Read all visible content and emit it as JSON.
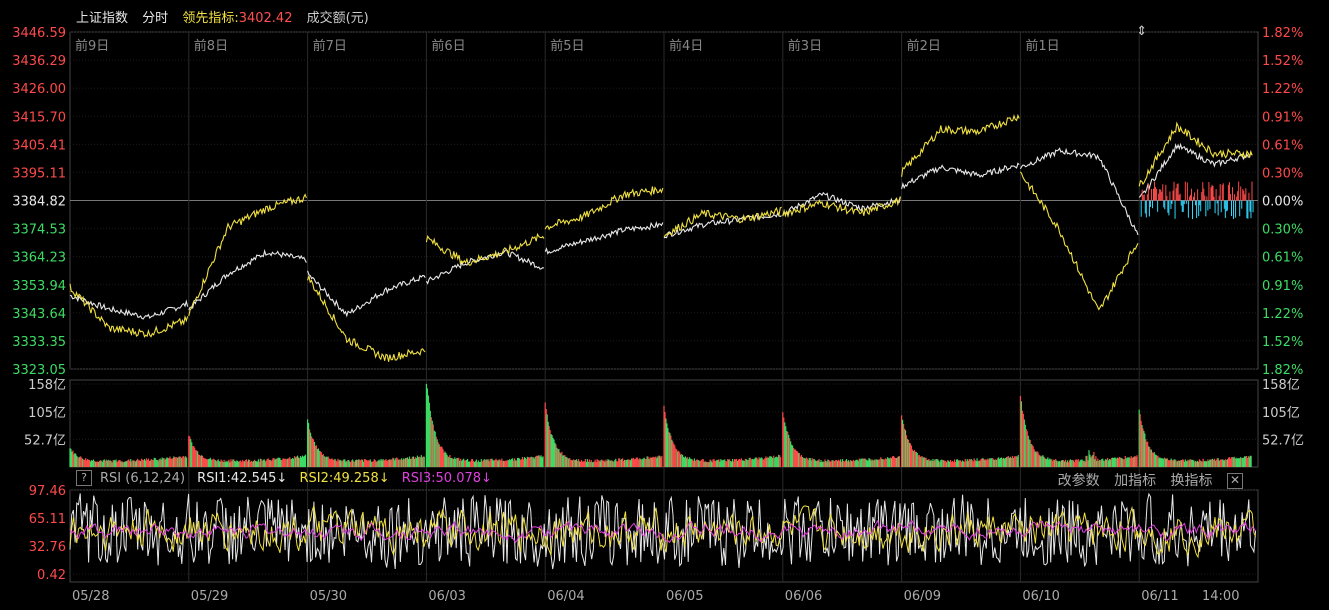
{
  "header": {
    "index_name": "上证指数",
    "mode": "分时",
    "leading_label": "领先指标:",
    "leading_value": "3402.42",
    "volume_label": "成交额(元)"
  },
  "colors": {
    "up": "#ff4a4a",
    "down": "#3ddc64",
    "white": "#e8e8e8",
    "yellow": "#f0e040",
    "magenta": "#e040e0",
    "cyan": "#30d8ff",
    "grid": "#3a0000"
  },
  "rsi_header": {
    "help": "?",
    "title": "RSI (6,12,24)",
    "rsi1": "RSI1:42.545↓",
    "rsi2": "RSI2:49.258↓",
    "rsi3": "RSI3:50.078↓"
  },
  "tools": {
    "change_params": "改参数",
    "add_indicator": "加指标",
    "switch_indicator": "换指标",
    "close": "✕"
  },
  "chart_data": {
    "type": "line",
    "price_axis": {
      "ticks": [
        "3446.59",
        "3436.29",
        "3426.00",
        "3415.70",
        "3405.41",
        "3395.11",
        "3384.82",
        "3374.53",
        "3364.23",
        "3353.94",
        "3343.64",
        "3333.35",
        "3323.05"
      ],
      "range": [
        3323.05,
        3446.59
      ],
      "base": 3384.82
    },
    "pct_axis": [
      "1.82%",
      "1.52%",
      "1.22%",
      "0.91%",
      "0.61%",
      "0.30%",
      "0.00%",
      "0.30%",
      "0.61%",
      "0.91%",
      "1.22%",
      "1.52%",
      "1.82%"
    ],
    "day_labels_top": [
      "前9日",
      "前8日",
      "前7日",
      "前6日",
      "前5日",
      "前4日",
      "前3日",
      "前2日",
      "前1日"
    ],
    "dates_bottom": [
      "05/28",
      "05/29",
      "05/30",
      "06/03",
      "06/04",
      "06/05",
      "06/06",
      "06/09",
      "06/10",
      "06/11",
      "14:00"
    ],
    "series": [
      {
        "color": "white",
        "points": [
          [
            3350,
            3345,
            3342,
            3347
          ],
          [
            3345,
            3358,
            3366,
            3363
          ],
          [
            3358,
            3343,
            3352,
            3357
          ],
          [
            3355,
            3362,
            3366,
            3360
          ],
          [
            3366,
            3370,
            3374,
            3376
          ],
          [
            3372,
            3376,
            3378,
            3380
          ],
          [
            3380,
            3387,
            3382,
            3385
          ],
          [
            3390,
            3397,
            3394,
            3398
          ],
          [
            3397,
            3403,
            3401,
            3372
          ],
          [
            3385,
            3405,
            3398,
            3402
          ]
        ]
      },
      {
        "color": "yellow",
        "points": [
          [
            3353,
            3338,
            3336,
            3341
          ],
          [
            3343,
            3375,
            3382,
            3386
          ],
          [
            3357,
            3334,
            3327,
            3330
          ],
          [
            3371,
            3362,
            3366,
            3372
          ],
          [
            3375,
            3379,
            3387,
            3389
          ],
          [
            3372,
            3380,
            3378,
            3381
          ],
          [
            3380,
            3384,
            3380,
            3385
          ],
          [
            3395,
            3411,
            3410,
            3416
          ],
          [
            3395,
            3374,
            3344,
            3370
          ],
          [
            3390,
            3412,
            3402,
            3402
          ]
        ]
      }
    ],
    "volume_axis": [
      "158亿",
      "105亿",
      "52.7亿"
    ],
    "volume_range": [
      0,
      158
    ],
    "rsi_axis": [
      "97.46",
      "65.11",
      "32.76",
      "0.42"
    ],
    "rsi_range": [
      0.42,
      97.46
    ]
  }
}
